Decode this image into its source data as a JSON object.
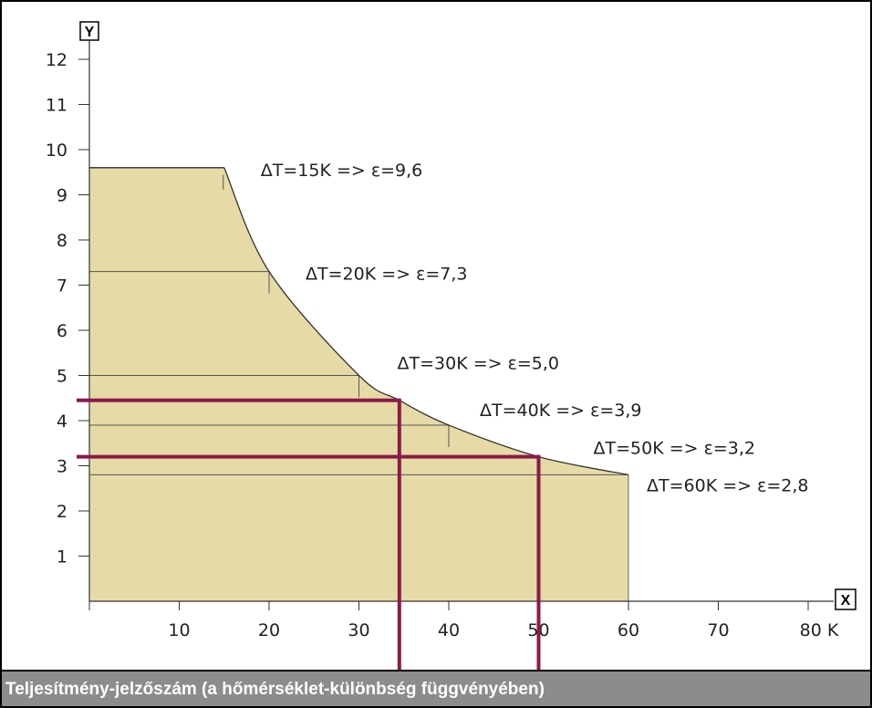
{
  "caption": "Teljesítmény-jelzőszám (a hőmérséklet-különbség függvényében)",
  "chart_data": {
    "type": "area",
    "xlabel": "X",
    "ylabel": "Y",
    "x_unit": "K",
    "xlim": [
      0,
      80
    ],
    "ylim": [
      0,
      12
    ],
    "x_ticks": [
      10,
      20,
      30,
      40,
      50,
      60,
      70,
      80
    ],
    "x_tick_labels": [
      "10",
      "20",
      "30",
      "40",
      "50",
      "60",
      "70",
      "80 K"
    ],
    "y_ticks": [
      1,
      2,
      3,
      4,
      5,
      6,
      7,
      8,
      9,
      10,
      11,
      12
    ],
    "y_tick_labels": [
      "1",
      "2",
      "3",
      "4",
      "5",
      "6",
      "7",
      "8",
      "9",
      "10",
      "11",
      "12"
    ],
    "grid": false,
    "fill_color": "#e6dba6",
    "curve_color": "#333333",
    "plateau": {
      "x_start": 0,
      "x_end": 15,
      "y": 9.6
    },
    "curve_points": [
      {
        "x": 15,
        "y": 9.6
      },
      {
        "x": 20,
        "y": 7.3
      },
      {
        "x": 30,
        "y": 5.0
      },
      {
        "x": 34.5,
        "y": 4.45
      },
      {
        "x": 40,
        "y": 3.9
      },
      {
        "x": 50,
        "y": 3.2
      },
      {
        "x": 60,
        "y": 2.8
      }
    ],
    "annotations": [
      {
        "dt": 15,
        "eps": 9.6,
        "label": "ΔT=15K  => ε=9,6"
      },
      {
        "dt": 20,
        "eps": 7.3,
        "label": "ΔT=20K  => ε=7,3"
      },
      {
        "dt": 30,
        "eps": 5.0,
        "label": "ΔT=30K  => ε=5,0"
      },
      {
        "dt": 40,
        "eps": 3.9,
        "label": "ΔT=40K  => ε=3,9"
      },
      {
        "dt": 50,
        "eps": 3.2,
        "label": "ΔT=50K  => ε=3,2"
      },
      {
        "dt": 60,
        "eps": 2.8,
        "label": "ΔT=60K  => ε=2,8"
      }
    ],
    "highlight_color": "#8b1a4a",
    "highlights": [
      {
        "x": 34.5,
        "y": 4.45
      },
      {
        "x": 50,
        "y": 3.2
      }
    ]
  }
}
